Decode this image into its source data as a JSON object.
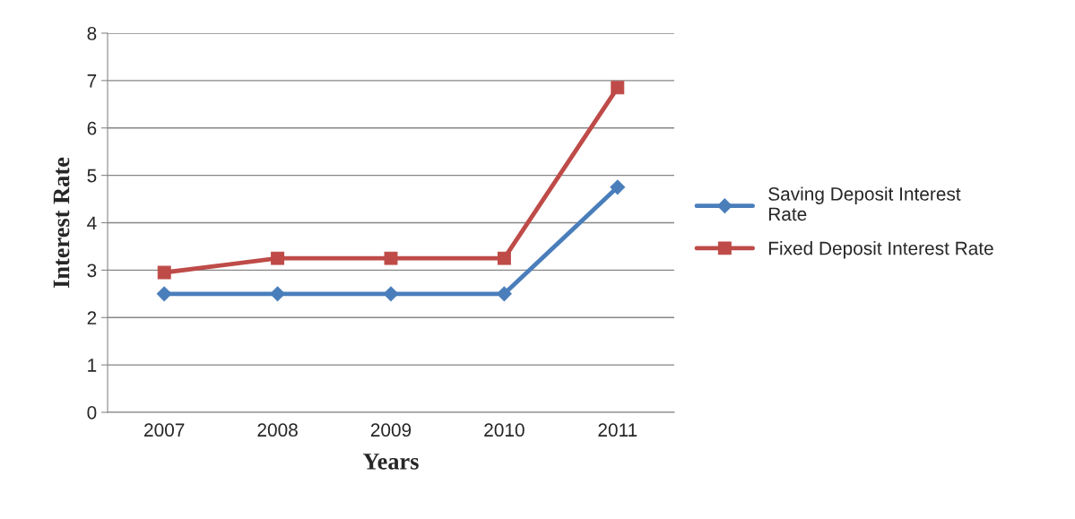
{
  "chart_data": {
    "type": "line",
    "xlabel": "Years",
    "ylabel": "Interest Rate",
    "categories": [
      "2007",
      "2008",
      "2009",
      "2010",
      "2011"
    ],
    "series": [
      {
        "name": "Saving Deposit Interest\nRate",
        "color": "#4a7ebb",
        "marker": "diamond",
        "values": [
          2.5,
          2.5,
          2.5,
          2.5,
          4.75
        ]
      },
      {
        "name": "Fixed Deposit Interest Rate",
        "color": "#be4b48",
        "marker": "square",
        "values": [
          2.95,
          3.25,
          3.25,
          3.25,
          6.85
        ]
      }
    ],
    "ylim": [
      0,
      8
    ],
    "yticks": [
      0,
      1,
      2,
      3,
      4,
      5,
      6,
      7,
      8
    ],
    "grid": "y",
    "legend": "right",
    "line_style": "solid"
  }
}
